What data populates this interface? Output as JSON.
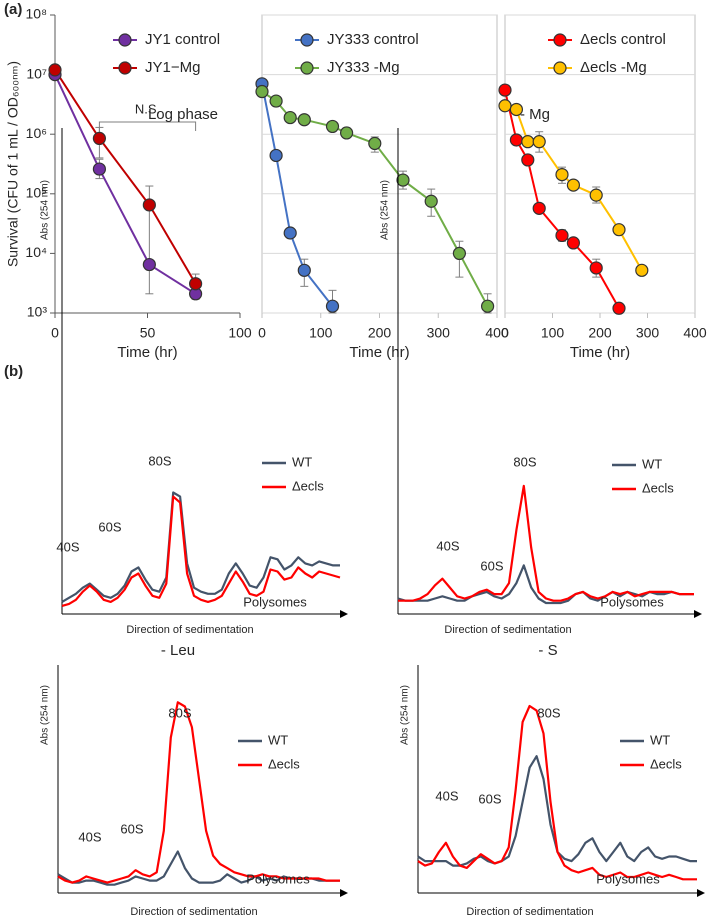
{
  "panel_labels": [
    "(a)",
    "(b)"
  ],
  "chart_data": [
    {
      "type": "line",
      "yscale": "log",
      "grid": false,
      "box": false,
      "show_ytick_labels": true,
      "xlim": [
        0,
        100
      ],
      "xticks": [
        0,
        50,
        100
      ],
      "ylim": [
        1000,
        100000000
      ],
      "yticks": [
        {
          "value": 1000,
          "label": "10³"
        },
        {
          "value": 10000,
          "label": "10⁴"
        },
        {
          "value": 100000,
          "label": "10⁵"
        },
        {
          "value": 1000000,
          "label": "10⁶"
        },
        {
          "value": 10000000,
          "label": "10⁷"
        },
        {
          "value": 100000000,
          "label": "10⁸"
        }
      ],
      "y_label": "Survival (CFU of 1 mL / OD₆₀₀ₙₘ)",
      "x_label": "Time (hr)",
      "annotation": "N.S.",
      "legend": "top-right",
      "series": [
        {
          "name": "JY1 control",
          "color": "#7030a0",
          "x": [
            0,
            24,
            51,
            76
          ],
          "values": [
            10000000,
            260000,
            6500,
            2100
          ],
          "error_low": [
            null,
            180000,
            null,
            1700
          ],
          "error_high": [
            null,
            380000,
            null,
            2600
          ]
        },
        {
          "name": "JY1−Mg",
          "color": "#c00000",
          "x": [
            0,
            24,
            51,
            76
          ],
          "values": [
            12000000,
            850000,
            65000,
            3100
          ],
          "error_low": [
            null,
            400000,
            2100,
            2400
          ],
          "error_high": [
            null,
            1300000,
            135000,
            4500
          ]
        }
      ]
    },
    {
      "type": "line",
      "yscale": "log",
      "grid": true,
      "box": true,
      "show_ytick_labels": false,
      "xlim": [
        0,
        400
      ],
      "xticks": [
        0,
        100,
        200,
        300,
        400
      ],
      "ylim": [
        1000,
        100000000
      ],
      "yticks": [
        1000,
        10000,
        100000,
        1000000,
        10000000,
        100000000
      ],
      "x_label": "Time (hr)",
      "legend": "top-right",
      "series": [
        {
          "name": "JY333 control",
          "color": "#4472c4",
          "x": [
            0,
            24,
            48,
            72,
            120
          ],
          "values": [
            7000000,
            440000,
            22000,
            5200,
            1300
          ],
          "error_low": [
            null,
            null,
            null,
            2800,
            1000
          ],
          "error_high": [
            null,
            null,
            null,
            8000,
            2400
          ]
        },
        {
          "name": "JY333 -Mg",
          "color": "#70ad47",
          "x": [
            0,
            24,
            48,
            72,
            120,
            144,
            192,
            240,
            288,
            336,
            384
          ],
          "values": [
            5200000,
            3600000,
            1900000,
            1750000,
            1350000,
            1050000,
            700000,
            170000,
            75000,
            10000,
            1300
          ],
          "error_low": [
            null,
            null,
            null,
            null,
            null,
            null,
            500000,
            120000,
            42000,
            4000,
            1000
          ],
          "error_high": [
            null,
            null,
            null,
            null,
            null,
            null,
            900000,
            240000,
            120000,
            16000,
            2100
          ]
        }
      ]
    },
    {
      "type": "line",
      "yscale": "log",
      "grid": true,
      "box": true,
      "show_ytick_labels": false,
      "xlim": [
        0,
        400
      ],
      "xticks": [
        0,
        100,
        200,
        300,
        400
      ],
      "ylim": [
        1000,
        100000000
      ],
      "yticks": [
        1000,
        10000,
        100000,
        1000000,
        10000000,
        100000000
      ],
      "x_label": "Time (hr)",
      "legend": "top-right",
      "series": [
        {
          "name": "Δecls control",
          "color": "#ff0000",
          "x": [
            0,
            24,
            48,
            72,
            120,
            144,
            192,
            240
          ],
          "values": [
            5500000,
            800000,
            370000,
            57000,
            20000,
            15000,
            5700,
            1200
          ],
          "error_low": [
            null,
            null,
            null,
            null,
            16000,
            null,
            4000,
            null
          ],
          "error_high": [
            null,
            null,
            null,
            null,
            25000,
            null,
            8000,
            null
          ]
        },
        {
          "name": "Δecls -Mg",
          "color": "#ffc000",
          "x": [
            0,
            24,
            48,
            72,
            120,
            144,
            192,
            240,
            288
          ],
          "values": [
            3000000,
            2600000,
            750000,
            750000,
            210000,
            140000,
            95000,
            25000,
            5200
          ],
          "error_low": [
            null,
            null,
            null,
            500000,
            150000,
            null,
            70000,
            null,
            null
          ],
          "error_high": [
            null,
            null,
            null,
            1100000,
            280000,
            null,
            130000,
            null,
            null
          ]
        }
      ]
    },
    {
      "type": "profile",
      "title": "Log phase",
      "x_label": "Direction of sedimentation",
      "y_label": "Abs (254 nm)",
      "peak_labels": [
        "40S",
        "60S",
        "80S",
        "Polysomes"
      ],
      "xlim": [
        0,
        100
      ],
      "ylim": [
        0,
        240
      ],
      "x": [
        0,
        2.5,
        5,
        7.5,
        10,
        12.5,
        15,
        17.5,
        20,
        22.5,
        25,
        27.5,
        30,
        32.5,
        35,
        37.5,
        40,
        42.5,
        45,
        47.5,
        50,
        52.5,
        55,
        57.5,
        60,
        62.5,
        65,
        67.5,
        70,
        72.5,
        75,
        77.5,
        80,
        82.5,
        85,
        87.5,
        90,
        92.5,
        95,
        97.5,
        100
      ],
      "series": [
        {
          "name": "WT",
          "color": "#44546a",
          "values": [
            6,
            8,
            10,
            13,
            15,
            12,
            9,
            8,
            10,
            14,
            21,
            23,
            17,
            12,
            11,
            18,
            60,
            58,
            25,
            13,
            11,
            10,
            10,
            12,
            20,
            25,
            20,
            14,
            13,
            18,
            28,
            27,
            22,
            24,
            28,
            25,
            24,
            26,
            25,
            24,
            24
          ]
        },
        {
          "name": "Δecls",
          "color": "#ff0000",
          "values": [
            4,
            5,
            7,
            11,
            14,
            11,
            7,
            6,
            8,
            12,
            18,
            20,
            14,
            9,
            8,
            15,
            58,
            55,
            20,
            9,
            7,
            6,
            7,
            9,
            15,
            21,
            16,
            10,
            9,
            11,
            22,
            21,
            17,
            18,
            23,
            20,
            18,
            21,
            20,
            19,
            18
          ]
        }
      ]
    },
    {
      "type": "profile",
      "title": "- Mg",
      "x_label": "Direction of sedimentation",
      "y_label": "Abs (254 nm)",
      "peak_labels": [
        "40S",
        "60S",
        "80S",
        "Polysomes"
      ],
      "xlim": [
        0,
        100
      ],
      "ylim": [
        0,
        220
      ],
      "x": [
        0,
        2.5,
        5,
        7.5,
        10,
        12.5,
        15,
        17.5,
        20,
        22.5,
        25,
        27.5,
        30,
        32.5,
        35,
        37.5,
        40,
        42.5,
        45,
        47.5,
        50,
        52.5,
        55,
        57.5,
        60,
        62.5,
        65,
        67.5,
        70,
        72.5,
        75,
        77.5,
        80,
        82.5,
        85,
        87.5,
        90,
        92.5,
        95,
        97.5,
        100
      ],
      "series": [
        {
          "name": "WT",
          "color": "#44546a",
          "values": [
            7,
            6,
            6,
            6,
            6,
            7,
            8,
            7,
            6,
            6,
            8,
            9,
            10,
            8,
            7,
            9,
            14,
            22,
            12,
            7,
            5,
            5,
            5,
            6,
            9,
            10,
            7,
            6,
            8,
            10,
            8,
            10,
            9,
            8,
            10,
            9,
            9,
            10,
            9,
            9,
            9
          ]
        },
        {
          "name": "Δecls",
          "color": "#ff0000",
          "values": [
            6,
            6,
            6,
            7,
            9,
            13,
            16,
            12,
            8,
            7,
            8,
            10,
            11,
            9,
            9,
            14,
            38,
            58,
            30,
            10,
            7,
            6,
            6,
            7,
            9,
            10,
            8,
            7,
            8,
            10,
            9,
            10,
            8,
            9,
            10,
            10,
            10,
            10,
            9,
            9,
            9
          ]
        }
      ]
    },
    {
      "type": "profile",
      "title": "- Leu",
      "x_label": "Direction of sedimentation",
      "y_label": "Abs (254 nm)",
      "peak_labels": [
        "40S",
        "60S",
        "80S",
        "Polysomes"
      ],
      "xlim": [
        0,
        100
      ],
      "ylim": [
        0,
        110
      ],
      "x": [
        0,
        2.5,
        5,
        7.5,
        10,
        12.5,
        15,
        17.5,
        20,
        22.5,
        25,
        27.5,
        30,
        32.5,
        35,
        37.5,
        40,
        42.5,
        45,
        47.5,
        50,
        52.5,
        55,
        57.5,
        60,
        62.5,
        65,
        67.5,
        70,
        72.5,
        75,
        77.5,
        80,
        82.5,
        85,
        87.5,
        90,
        92.5,
        95,
        97.5,
        100
      ],
      "series": [
        {
          "name": "WT",
          "color": "#44546a",
          "values": [
            9,
            7,
            5,
            5,
            6,
            6,
            5,
            4,
            4,
            5,
            6,
            8,
            7,
            6,
            6,
            8,
            14,
            20,
            12,
            7,
            5,
            5,
            5,
            6,
            9,
            7,
            5,
            6,
            8,
            6,
            7,
            6,
            8,
            7,
            7,
            7,
            7,
            6,
            6,
            6,
            6
          ]
        },
        {
          "name": "Δecls",
          "color": "#ff0000",
          "values": [
            8,
            6,
            5,
            6,
            8,
            7,
            6,
            5,
            6,
            7,
            8,
            11,
            9,
            8,
            10,
            30,
            75,
            92,
            90,
            80,
            55,
            30,
            18,
            14,
            12,
            10,
            9,
            8,
            8,
            9,
            8,
            8,
            7,
            7,
            7,
            7,
            7,
            7,
            6,
            6,
            6
          ]
        }
      ]
    },
    {
      "type": "profile",
      "title": "- S",
      "x_label": "Direction of sedimentation",
      "y_label": "Abs (254 nm)",
      "peak_labels": [
        "40S",
        "60S",
        "80S",
        "Polysomes"
      ],
      "xlim": [
        0,
        100
      ],
      "ylim": [
        0,
        100
      ],
      "x": [
        0,
        2.5,
        5,
        7.5,
        10,
        12.5,
        15,
        17.5,
        20,
        22.5,
        25,
        27.5,
        30,
        32.5,
        35,
        37.5,
        40,
        42.5,
        45,
        47.5,
        50,
        52.5,
        55,
        57.5,
        60,
        62.5,
        65,
        67.5,
        70,
        72.5,
        75,
        77.5,
        80,
        82.5,
        85,
        87.5,
        90,
        92.5,
        95,
        97.5,
        100
      ],
      "series": [
        {
          "name": "WT",
          "color": "#44546a",
          "values": [
            16,
            14,
            14,
            14,
            14,
            12,
            12,
            13,
            15,
            16,
            14,
            13,
            14,
            16,
            25,
            40,
            55,
            60,
            50,
            30,
            18,
            15,
            14,
            17,
            22,
            24,
            18,
            14,
            18,
            22,
            16,
            14,
            18,
            20,
            16,
            15,
            16,
            16,
            15,
            14,
            14
          ]
        },
        {
          "name": "Δecls",
          "color": "#ff0000",
          "values": [
            14,
            12,
            13,
            18,
            22,
            16,
            12,
            11,
            14,
            17,
            15,
            13,
            14,
            20,
            45,
            75,
            82,
            80,
            70,
            40,
            18,
            12,
            10,
            9,
            10,
            11,
            8,
            7,
            8,
            9,
            7,
            7,
            8,
            9,
            8,
            7,
            8,
            7,
            6,
            6,
            6
          ]
        }
      ]
    }
  ]
}
